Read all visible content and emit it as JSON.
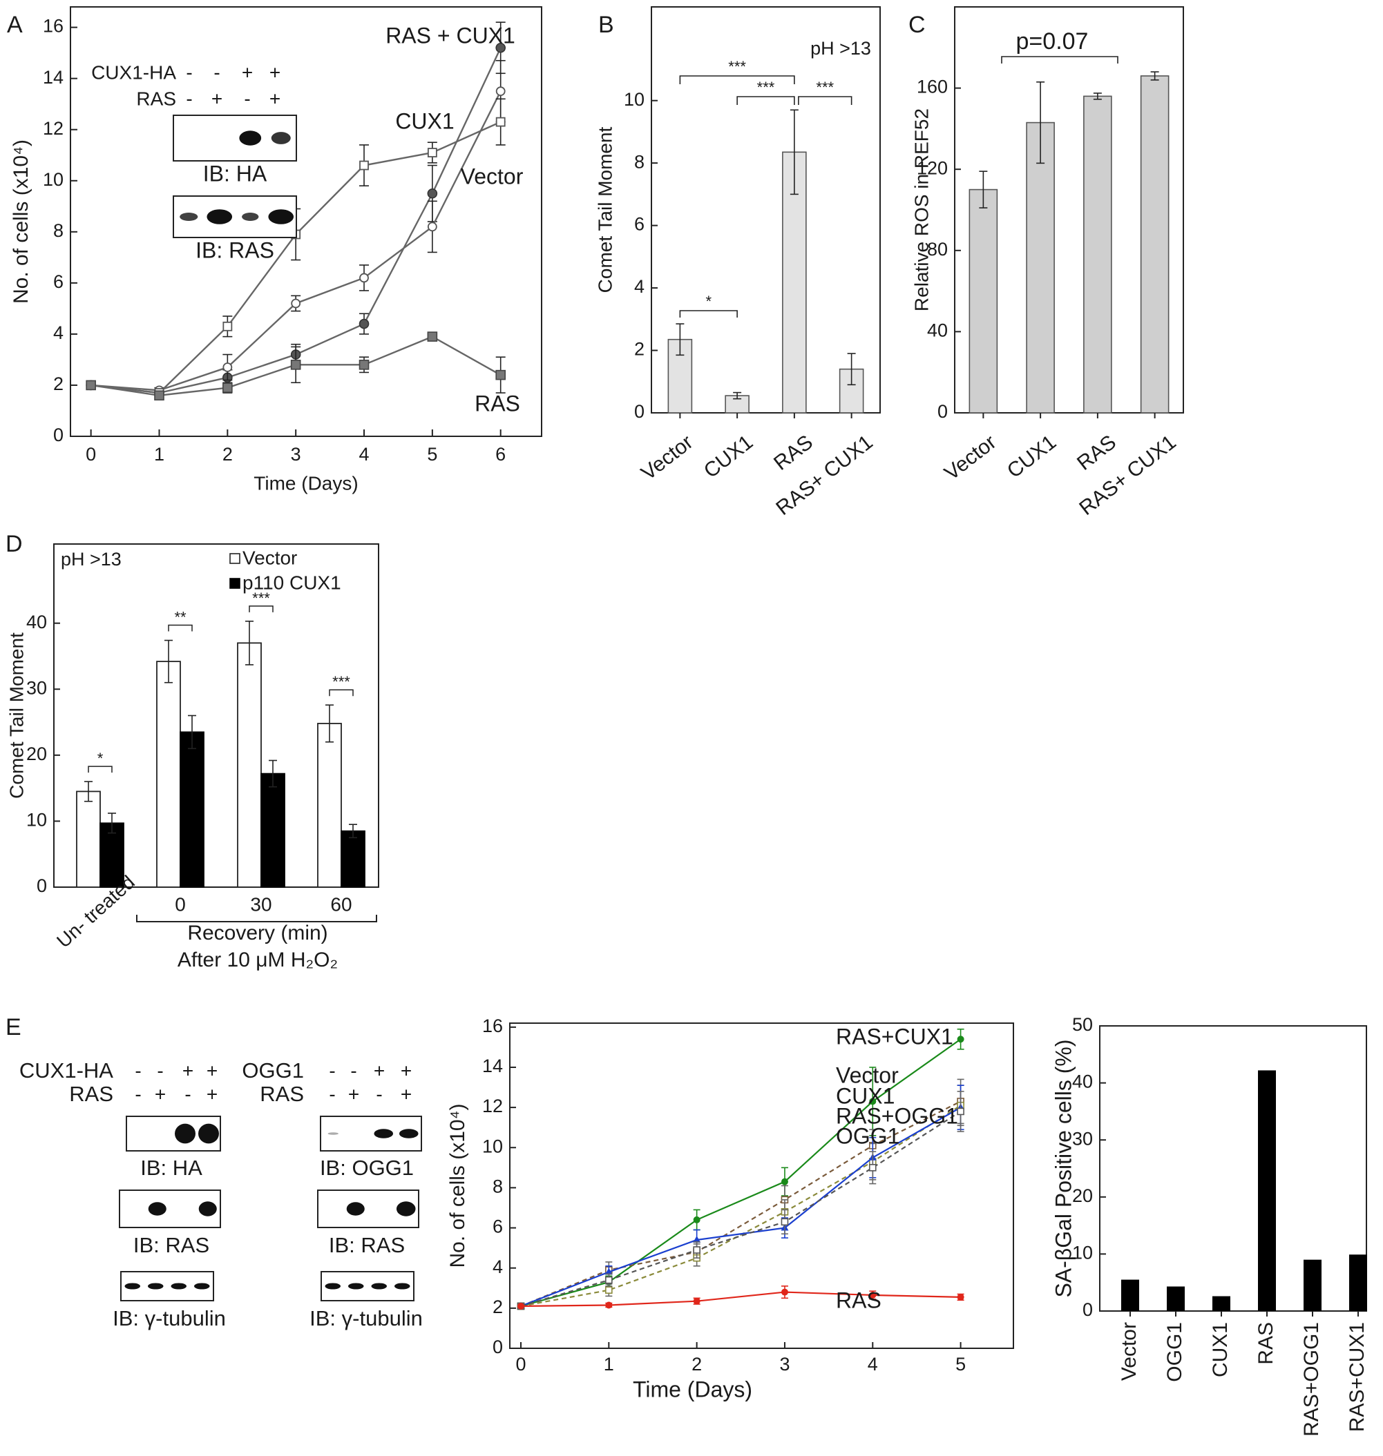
{
  "chart_data": [
    {
      "panel": "A",
      "type": "line",
      "x": [
        0,
        1,
        2,
        3,
        4,
        5,
        6
      ],
      "xlabel": "Time (Days)",
      "ylabel": "No. of cells (x10⁴)",
      "xlim": [
        -0.3,
        6.6
      ],
      "ylim": [
        0,
        16.8
      ],
      "xticks": [
        "0",
        "1",
        "2",
        "3",
        "4",
        "5",
        "6"
      ],
      "yticks": [
        "0",
        "2",
        "4",
        "6",
        "8",
        "10",
        "12",
        "14",
        "16"
      ],
      "series": [
        {
          "name": "RAS + CUX1",
          "marker": "filled-circle",
          "values": [
            2.0,
            1.7,
            2.3,
            3.2,
            4.4,
            9.5,
            15.2
          ],
          "errors": [
            0,
            0.1,
            0.3,
            0.4,
            0.4,
            1.1,
            1.0
          ]
        },
        {
          "name": "CUX1",
          "marker": "open-circle",
          "values": [
            2.0,
            1.8,
            2.7,
            5.2,
            6.2,
            8.2,
            13.5
          ],
          "errors": [
            0,
            0.1,
            0.5,
            0.3,
            0.5,
            1.0,
            1.2
          ]
        },
        {
          "name": "Vector",
          "marker": "open-square",
          "values": [
            2.0,
            1.7,
            4.3,
            7.9,
            10.6,
            11.1,
            12.3
          ],
          "errors": [
            0,
            0.1,
            0.4,
            1.0,
            0.8,
            0.4,
            0.9
          ]
        },
        {
          "name": "RAS",
          "marker": "filled-square",
          "values": [
            2.0,
            1.6,
            1.9,
            2.8,
            2.8,
            3.9,
            2.4
          ],
          "errors": [
            0,
            0.1,
            0.2,
            0.7,
            0.3,
            0.1,
            0.7
          ]
        }
      ],
      "inset": {
        "rows": [
          {
            "label": "CUX1-HA",
            "signs": [
              "-",
              "-",
              "+",
              "+"
            ]
          },
          {
            "label": "RAS",
            "signs": [
              "-",
              "+",
              "-",
              "+"
            ]
          }
        ],
        "blots": [
          "IB: HA",
          "IB: RAS"
        ]
      }
    },
    {
      "panel": "B",
      "type": "bar",
      "categories": [
        "Vector",
        "CUX1",
        "RAS",
        "RAS+ CUX1"
      ],
      "values": [
        2.35,
        0.55,
        8.35,
        1.4
      ],
      "errors": [
        0.5,
        0.1,
        1.35,
        0.5
      ],
      "ylabel": "Comet Tail Moment",
      "ylim": [
        0,
        13
      ],
      "yticks": [
        "0",
        "2",
        "4",
        "6",
        "8",
        "10"
      ],
      "note": "pH >13",
      "significance": [
        {
          "from": 0,
          "to": 1,
          "label": "*"
        },
        {
          "from": 0,
          "to": 2,
          "label": "***"
        },
        {
          "from": 1,
          "to": 2,
          "label": "***"
        },
        {
          "from": 2,
          "to": 3,
          "label": "***"
        }
      ]
    },
    {
      "panel": "C",
      "type": "bar",
      "categories": [
        "Vector",
        "CUX1",
        "RAS",
        "RAS+ CUX1"
      ],
      "values": [
        110,
        143,
        156,
        166
      ],
      "errors": [
        9,
        20,
        1.5,
        2
      ],
      "ylabel": "Relative ROS in REF52",
      "ylim": [
        0,
        200
      ],
      "yticks": [
        "0",
        "40",
        "80",
        "120",
        "160"
      ],
      "annotation": "p=0.07"
    },
    {
      "panel": "D",
      "type": "bar",
      "categories": [
        "Un- treated",
        "0",
        "30",
        "60"
      ],
      "series": [
        {
          "name": "Vector",
          "values": [
            14.5,
            34.2,
            37.0,
            24.8
          ],
          "errors": [
            1.5,
            3.2,
            3.3,
            2.8
          ]
        },
        {
          "name": "p110 CUX1",
          "values": [
            9.7,
            23.5,
            17.2,
            8.5
          ],
          "errors": [
            1.5,
            2.5,
            2.0,
            1.0
          ]
        }
      ],
      "ylabel": "Comet Tail Moment",
      "ylim": [
        0,
        52
      ],
      "yticks": [
        "0",
        "10",
        "20",
        "30",
        "40"
      ],
      "note": "pH >13",
      "significance": [
        "*",
        "**",
        "***",
        "***"
      ],
      "xlabel": "Recovery (min)",
      "xlabel2": "After 10 μM H₂O₂"
    },
    {
      "panel": "E",
      "type": "line",
      "x": [
        0,
        1,
        2,
        3,
        4,
        5
      ],
      "xlabel": "Time (Days)",
      "ylabel": "No. of cells (x10⁴)",
      "xlim": [
        0,
        5.6
      ],
      "ylim": [
        0,
        16.2
      ],
      "xticks": [
        "0",
        "1",
        "2",
        "3",
        "4",
        "5"
      ],
      "yticks": [
        "0",
        "2",
        "4",
        "6",
        "8",
        "10",
        "12",
        "14",
        "16"
      ],
      "series": [
        {
          "name": "RAS+CUX1",
          "color": "#1a8a1a",
          "dash": false,
          "values": [
            2.1,
            3.3,
            6.4,
            8.3,
            12.3,
            15.4
          ],
          "errors": [
            0,
            0.3,
            0.5,
            0.7,
            1.7,
            0.5
          ]
        },
        {
          "name": "Vector",
          "color": "#7a5a3a",
          "dash": true,
          "values": [
            2.1,
            3.9,
            4.8,
            7.4,
            10.1,
            12.3
          ],
          "errors": [
            0,
            0.4,
            0.4,
            0.7,
            0.8,
            1.1
          ]
        },
        {
          "name": "CUX1",
          "color": "#8a8a3a",
          "dash": true,
          "values": [
            2.1,
            2.9,
            4.5,
            6.8,
            9.3,
            12.1
          ],
          "errors": [
            0,
            0.3,
            0.4,
            0.6,
            0.9,
            1.0
          ]
        },
        {
          "name": "RAS+OGG1",
          "color": "#1a3fcf",
          "dash": false,
          "values": [
            2.1,
            3.8,
            5.4,
            6.0,
            9.5,
            12.0
          ],
          "errors": [
            0,
            0.3,
            0.5,
            0.5,
            1.0,
            1.1
          ]
        },
        {
          "name": "OGG1",
          "color": "#555555",
          "dash": true,
          "values": [
            2.1,
            3.4,
            4.9,
            6.3,
            9.0,
            11.8
          ],
          "errors": [
            0,
            0.3,
            0.4,
            0.6,
            0.8,
            1.0
          ]
        },
        {
          "name": "RAS",
          "color": "#e0261a",
          "dash": false,
          "values": [
            2.1,
            2.15,
            2.35,
            2.8,
            2.65,
            2.55
          ],
          "errors": [
            0,
            0.1,
            0.15,
            0.3,
            0.2,
            0.15
          ]
        }
      ]
    },
    {
      "panel": "E-bar",
      "type": "bar",
      "categories": [
        "Vector",
        "OGG1",
        "CUX1",
        "RAS",
        "RAS+OGG1",
        "RAS+CUX1"
      ],
      "values": [
        5.5,
        4.3,
        2.6,
        42.2,
        9.0,
        9.9
      ],
      "ylabel": "SA-βGal Positive cells (%)",
      "ylim": [
        0,
        50
      ],
      "yticks": [
        "0",
        "10",
        "20",
        "30",
        "40",
        "50"
      ]
    }
  ],
  "panel_labels": [
    "A",
    "B",
    "C",
    "D",
    "E"
  ],
  "blots_E": {
    "left": {
      "rows": [
        {
          "label": "CUX1-HA",
          "signs": [
            "-",
            "-",
            "+",
            "+"
          ]
        },
        {
          "label": "RAS",
          "signs": [
            "-",
            "+",
            "-",
            "+"
          ]
        }
      ],
      "blots": [
        "IB: HA",
        "IB: RAS",
        "IB: γ-tubulin"
      ]
    },
    "right": {
      "rows": [
        {
          "label": "OGG1",
          "signs": [
            "-",
            "-",
            "+",
            "+"
          ]
        },
        {
          "label": "RAS",
          "signs": [
            "-",
            "+",
            "-",
            "+"
          ]
        }
      ],
      "blots": [
        "IB: OGG1",
        "IB: RAS",
        "IB: γ-tubulin"
      ]
    }
  }
}
